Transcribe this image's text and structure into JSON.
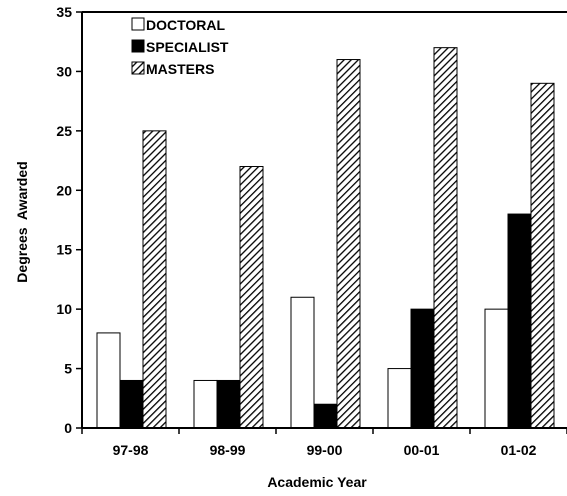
{
  "chart_data": {
    "type": "bar",
    "categories": [
      "97-98",
      "98-99",
      "99-00",
      "00-01",
      "01-02"
    ],
    "series": [
      {
        "name": "DOCTORAL",
        "values": [
          8,
          4,
          11,
          5,
          10
        ],
        "fill": "#ffffff",
        "pattern": "solid"
      },
      {
        "name": "SPECIALIST",
        "values": [
          4,
          4,
          2,
          10,
          18
        ],
        "fill": "#000000",
        "pattern": "solid"
      },
      {
        "name": "MASTERS",
        "values": [
          25,
          22,
          31,
          32,
          29
        ],
        "fill": "#ffffff",
        "pattern": "diagonal-hatch"
      }
    ],
    "xlabel": "Academic Year",
    "ylabel": "Degrees  Awarded",
    "ylim": [
      0,
      35
    ],
    "yticks": [
      0,
      5,
      10,
      15,
      20,
      25,
      30,
      35
    ],
    "grid": false,
    "legend": "top-left"
  }
}
